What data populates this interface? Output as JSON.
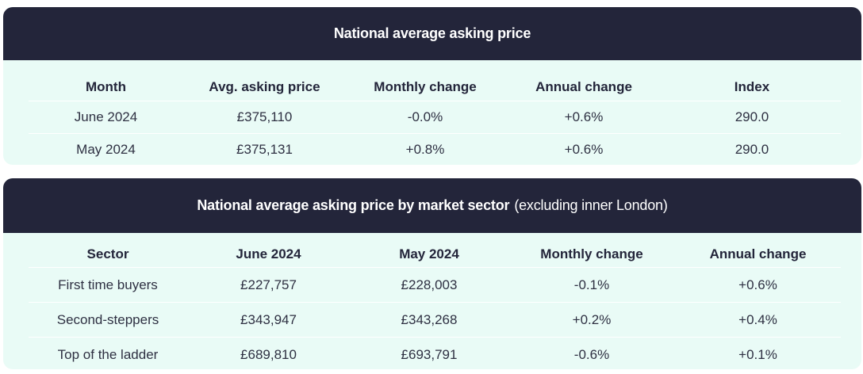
{
  "table1": {
    "title": "National average asking price",
    "headers": [
      "Month",
      "Avg. asking price",
      "Monthly change",
      "Annual change",
      "Index"
    ],
    "rows": [
      [
        "June 2024",
        "£375,110",
        "-0.0%",
        "+0.6%",
        "290.0"
      ],
      [
        "May 2024",
        "£375,131",
        "+0.8%",
        "+0.6%",
        "290.0"
      ]
    ]
  },
  "table2": {
    "title": "National average asking price by market sector",
    "subtitle": "(excluding inner London)",
    "headers": [
      "Sector",
      "June 2024",
      "May 2024",
      "Monthly change",
      "Annual change"
    ],
    "rows": [
      [
        "First time buyers",
        "£227,757",
        "£228,003",
        "-0.1%",
        "+0.6%"
      ],
      [
        "Second-steppers",
        "£343,947",
        "£343,268",
        "+0.2%",
        "+0.4%"
      ],
      [
        "Top of the ladder",
        "£689,810",
        "£693,791",
        "-0.6%",
        "+0.1%"
      ]
    ]
  },
  "colors": {
    "header_bg": "#23253a",
    "panel_bg": "#e9fbf6",
    "header_text": "#ffffff"
  }
}
